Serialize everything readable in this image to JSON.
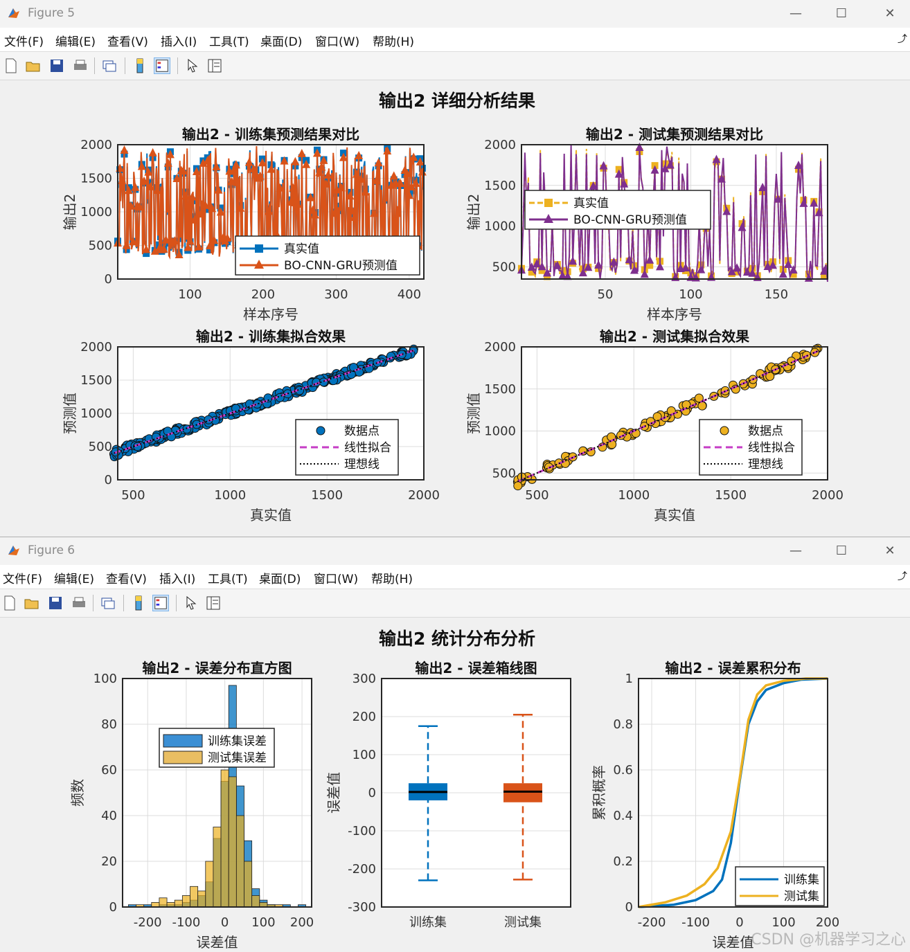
{
  "menu": [
    "文件(F)",
    "编辑(E)",
    "查看(V)",
    "插入(I)",
    "工具(T)",
    "桌面(D)",
    "窗口(W)",
    "帮助(H)"
  ],
  "figure5": {
    "title": "Figure 5",
    "sgtitle": "输出2 详细分析结果",
    "charts": {
      "train_compare": {
        "type": "line",
        "title": "输出2 - 训练集预测结果对比",
        "xlabel": "样本序号",
        "ylabel": "输出2",
        "xlim": [
          1,
          420
        ],
        "ylim": [
          0,
          2000
        ],
        "xticks": [
          100,
          200,
          300,
          400
        ],
        "yticks": [
          0,
          500,
          1000,
          1500,
          2000
        ],
        "legend": [
          "真实值",
          "BO-CNN-GRU预测值"
        ],
        "legend_location": "southeast",
        "grid": true,
        "series": [
          {
            "name": "真实值",
            "color": "#0072BD",
            "marker": "square"
          },
          {
            "name": "BO-CNN-GRU预测值",
            "color": "#D95319",
            "marker": "triangle"
          }
        ],
        "n_points": 420,
        "value_range": [
          380,
          1950
        ]
      },
      "test_compare": {
        "type": "line",
        "title": "输出2 - 测试集预测结果对比",
        "xlabel": "样本序号",
        "ylabel": "输出2",
        "xlim": [
          1,
          180
        ],
        "ylim": [
          350,
          2000
        ],
        "xticks": [
          50,
          100,
          150
        ],
        "yticks": [
          500,
          1000,
          1500,
          2000
        ],
        "legend": [
          "真实值",
          "BO-CNN-GRU预测值"
        ],
        "legend_location": "northwest",
        "grid": true,
        "series": [
          {
            "name": "真实值",
            "color": "#EDB120",
            "marker": "square",
            "style": "dashed"
          },
          {
            "name": "BO-CNN-GRU预测值",
            "color": "#7E2F8E",
            "marker": "triangle"
          }
        ],
        "n_points": 180,
        "value_range": [
          380,
          1950
        ]
      },
      "train_fit": {
        "type": "scatter",
        "title": "输出2 - 训练集拟合效果",
        "xlabel": "真实值",
        "ylabel": "预测值",
        "xlim": [
          420,
          2000
        ],
        "ylim": [
          0,
          2000
        ],
        "xticks": [
          500,
          1000,
          1500,
          2000
        ],
        "yticks": [
          0,
          500,
          1000,
          1500,
          2000
        ],
        "legend": [
          "数据点",
          "线性拟合",
          "理想线"
        ],
        "legend_location": "southeast",
        "grid": true,
        "point_color": "#0072BD",
        "range": [
          400,
          1950
        ]
      },
      "test_fit": {
        "type": "scatter",
        "title": "输出2 - 测试集拟合效果",
        "xlabel": "真实值",
        "ylabel": "预测值",
        "xlim": [
          420,
          2000
        ],
        "ylim": [
          420,
          2000
        ],
        "xticks": [
          500,
          1000,
          1500,
          2000
        ],
        "yticks": [
          500,
          1000,
          1500,
          2000
        ],
        "legend": [
          "数据点",
          "线性拟合",
          "理想线"
        ],
        "legend_location": "southeast",
        "grid": true,
        "point_color": "#EDB120",
        "range": [
          400,
          1950
        ]
      }
    }
  },
  "figure6": {
    "title": "Figure 6",
    "sgtitle": "输出2 统计分布分析",
    "charts": {
      "hist": {
        "type": "bar",
        "title": "输出2 - 误差分布直方图",
        "xlabel": "误差值",
        "ylabel": "频数",
        "xlim": [
          -265,
          225
        ],
        "ylim": [
          0,
          100
        ],
        "xticks": [
          -200,
          -100,
          0,
          100,
          200
        ],
        "yticks": [
          0,
          20,
          40,
          60,
          80,
          100
        ],
        "legend": [
          "训练集误差",
          "测试集误差"
        ],
        "legend_location": "northwest",
        "grid": true,
        "bin_edges": [
          -250,
          -230,
          -210,
          -190,
          -170,
          -150,
          -130,
          -110,
          -90,
          -70,
          -50,
          -30,
          -10,
          10,
          30,
          50,
          70,
          90,
          110,
          130,
          150,
          170,
          190,
          210
        ],
        "series": [
          {
            "name": "训练集误差",
            "color": "#0072BD",
            "values": [
              1,
              0,
              1,
              0,
              1,
              1,
              1,
              2,
              3,
              5,
              11,
              30,
              55,
              97,
              53,
              29,
              8,
              3,
              1,
              0,
              1,
              0,
              1
            ]
          },
          {
            "name": "测试集误差",
            "color": "#EDB120",
            "values": [
              0,
              1,
              0,
              2,
              4,
              2,
              3,
              5,
              9,
              7,
              20,
              35,
              60,
              57,
              40,
              20,
              5,
              2,
              1,
              1,
              0,
              0,
              0
            ]
          }
        ]
      },
      "box": {
        "type": "box",
        "title": "输出2 - 误差箱线图",
        "ylabel": "误差值",
        "ylim": [
          -300,
          300
        ],
        "yticks": [
          -300,
          -200,
          -100,
          0,
          100,
          200,
          300
        ],
        "grid": true,
        "categories": [
          "训练集",
          "测试集"
        ],
        "boxes": [
          {
            "name": "训练集",
            "color": "#0072BD",
            "whisker_low": -230,
            "q1": -20,
            "median": 2,
            "q3": 25,
            "whisker_high": 175
          },
          {
            "name": "测试集",
            "color": "#D95319",
            "whisker_low": -228,
            "q1": -25,
            "median": 3,
            "q3": 25,
            "whisker_high": 205
          }
        ]
      },
      "cdf": {
        "type": "line",
        "title": "输出2 - 误差累积分布",
        "xlabel": "误差值",
        "ylabel": "累积概率",
        "xlim": [
          -230,
          200
        ],
        "ylim": [
          0,
          1
        ],
        "xticks": [
          -200,
          -100,
          0,
          100,
          200
        ],
        "yticks": [
          0,
          0.2,
          0.4,
          0.6,
          0.8,
          1
        ],
        "legend": [
          "训练集",
          "测试集"
        ],
        "legend_location": "southeast",
        "grid": true,
        "series": [
          {
            "name": "训练集",
            "color": "#0072BD",
            "x": [
              -230,
              -150,
              -100,
              -60,
              -40,
              -20,
              0,
              20,
              40,
              60,
              100,
              140,
              200
            ],
            "y": [
              0,
              0.01,
              0.03,
              0.07,
              0.12,
              0.28,
              0.55,
              0.8,
              0.9,
              0.95,
              0.98,
              0.995,
              1
            ]
          },
          {
            "name": "测试集",
            "color": "#EDB120",
            "x": [
              -230,
              -170,
              -120,
              -80,
              -50,
              -20,
              0,
              20,
              40,
              60,
              100,
              150,
              200
            ],
            "y": [
              0,
              0.02,
              0.05,
              0.1,
              0.17,
              0.33,
              0.56,
              0.82,
              0.93,
              0.97,
              0.99,
              1,
              1
            ]
          }
        ]
      }
    }
  },
  "watermark": "CSDN @机器学习之心"
}
